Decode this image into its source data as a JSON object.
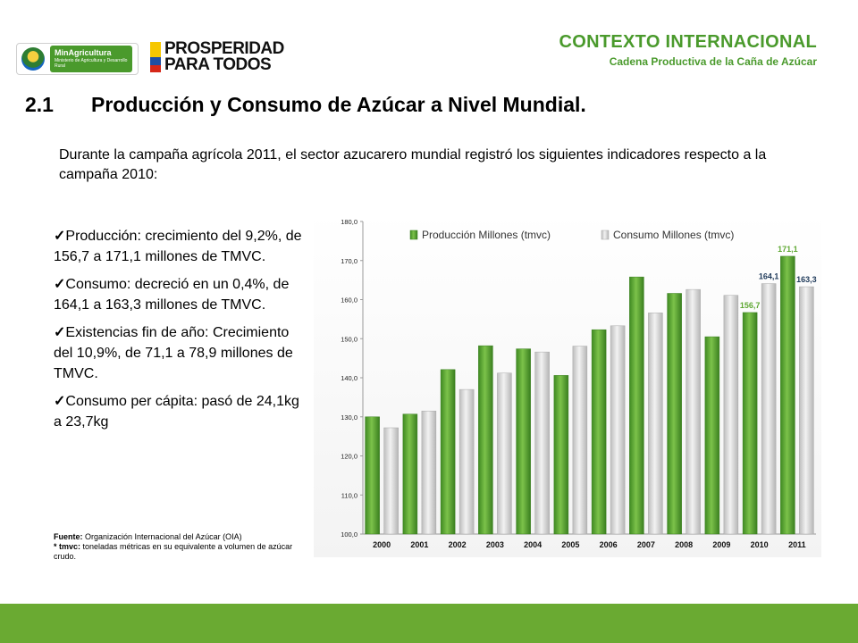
{
  "header": {
    "logo_min_title": "MinAgricultura",
    "logo_min_subtitle": "Ministerio de Agricultura y Desarrollo Rural",
    "logo_pros_line1": "PROSPERIDAD",
    "logo_pros_line2": "PARA TODOS",
    "context_title": "CONTEXTO INTERNACIONAL",
    "context_subtitle": "Cadena Productiva de la Caña de Azúcar"
  },
  "section": {
    "number": "2.1",
    "title": "Producción y Consumo de Azúcar a Nivel Mundial."
  },
  "intro": "Durante la campaña agrícola 2011, el sector azucarero mundial registró los siguientes indicadores respecto a la campaña 2010:",
  "bullets": [
    {
      "check": "✓",
      "text": "Producción: crecimiento del 9,2%, de 156,7 a 171,1 millones de TMVC."
    },
    {
      "check": "✓",
      "text": "Consumo: decreció en un 0,4%, de 164,1 a 163,3 millones de TMVC."
    },
    {
      "check": "✓",
      "text": "Existencias fin de año: Crecimiento del 10,9%, de 71,1 a 78,9 millones de TMVC."
    },
    {
      "check": "✓",
      "text": "Consumo per cápita: pasó de 24,1kg a 23,7kg"
    }
  ],
  "source": {
    "label": "Fuente:",
    "text": " Organización Internacional del Azúcar (OIA)",
    "note_label": "* tmvc:",
    "note_text": " toneladas métricas en su equivalente a volumen de azúcar crudo."
  },
  "colors": {
    "accent_green": "#4a9a2c",
    "production_bar": "#5ea832",
    "consumption_bar": "#d6d6d6",
    "footer": "#6aaa32"
  },
  "chart_data": {
    "type": "bar",
    "categories": [
      "2000",
      "2001",
      "2002",
      "2003",
      "2004",
      "2005",
      "2006",
      "2007",
      "2008",
      "2009",
      "2010",
      "2011"
    ],
    "series": [
      {
        "name": "Producción Millones (tmvc)",
        "values": [
          130.0,
          130.7,
          142.1,
          148.2,
          147.4,
          140.6,
          152.3,
          165.8,
          161.6,
          150.5,
          156.7,
          171.1
        ]
      },
      {
        "name": "Consumo Millones (tmvc)",
        "values": [
          127.2,
          131.5,
          137.0,
          141.2,
          146.6,
          148.1,
          153.3,
          156.6,
          162.6,
          161.1,
          164.1,
          163.3
        ]
      }
    ],
    "ylim": [
      100,
      180
    ],
    "yticks": [
      "100,0",
      "110,0",
      "120,0",
      "130,0",
      "140,0",
      "150,0",
      "160,0",
      "170,0",
      "180,0"
    ],
    "data_labels": [
      {
        "series": 0,
        "index": 10,
        "text": "156,7"
      },
      {
        "series": 1,
        "index": 10,
        "text": "164,1"
      },
      {
        "series": 0,
        "index": 11,
        "text": "171,1"
      },
      {
        "series": 1,
        "index": 11,
        "text": "163,3"
      }
    ],
    "legend_position": "top",
    "grid": false
  }
}
